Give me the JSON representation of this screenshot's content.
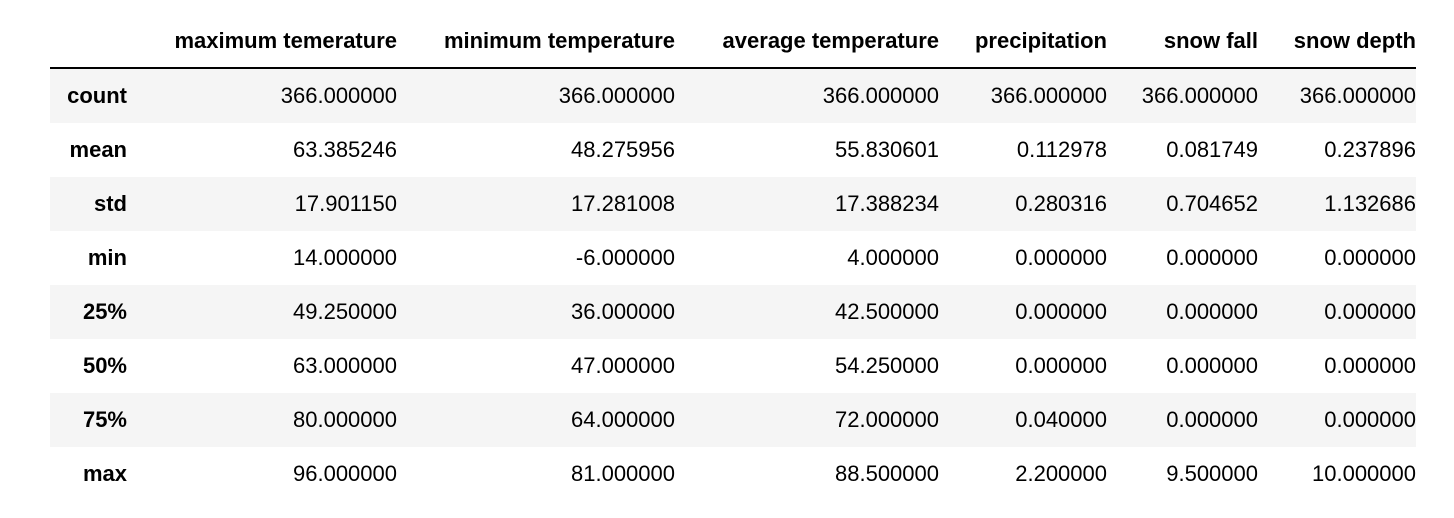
{
  "chart_data": {
    "type": "table",
    "columns": [
      "",
      "maximum temerature",
      "minimum temperature",
      "average temperature",
      "precipitation",
      "snow fall",
      "snow depth"
    ],
    "rows": [
      {
        "label": "count",
        "values": [
          "366.000000",
          "366.000000",
          "366.000000",
          "366.000000",
          "366.000000",
          "366.000000"
        ]
      },
      {
        "label": "mean",
        "values": [
          "63.385246",
          "48.275956",
          "55.830601",
          "0.112978",
          "0.081749",
          "0.237896"
        ]
      },
      {
        "label": "std",
        "values": [
          "17.901150",
          "17.281008",
          "17.388234",
          "0.280316",
          "0.704652",
          "1.132686"
        ]
      },
      {
        "label": "min",
        "values": [
          "14.000000",
          "-6.000000",
          "4.000000",
          "0.000000",
          "0.000000",
          "0.000000"
        ]
      },
      {
        "label": "25%",
        "values": [
          "49.250000",
          "36.000000",
          "42.500000",
          "0.000000",
          "0.000000",
          "0.000000"
        ]
      },
      {
        "label": "50%",
        "values": [
          "63.000000",
          "47.000000",
          "54.250000",
          "0.000000",
          "0.000000",
          "0.000000"
        ]
      },
      {
        "label": "75%",
        "values": [
          "80.000000",
          "64.000000",
          "72.000000",
          "0.040000",
          "0.000000",
          "0.000000"
        ]
      },
      {
        "label": "max",
        "values": [
          "96.000000",
          "81.000000",
          "88.500000",
          "2.200000",
          "9.500000",
          "10.000000"
        ]
      }
    ]
  }
}
